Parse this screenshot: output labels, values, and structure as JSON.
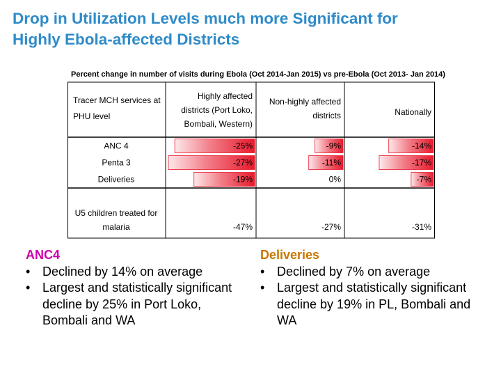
{
  "slide": {
    "title_line1": "Drop in Utilization Levels much more Significant for",
    "title_line2": "Highly Ebola-affected Districts"
  },
  "chart_data": {
    "type": "table",
    "title": "Percent change in number of visits during Ebola (Oct 2014-Jan 2015) vs pre-Ebola (Oct 2013- Jan 2014)",
    "row_header": [
      "Tracer MCH services at",
      "PHU level"
    ],
    "columns": [
      {
        "name": "highly",
        "label_lines": [
          "Highly affected",
          "districts (Port Loko,",
          "Bombali, Western)"
        ]
      },
      {
        "name": "non-highly",
        "label_lines": [
          "Non-highly affected",
          "districts"
        ]
      },
      {
        "name": "national",
        "label_lines": [
          "Nationally"
        ]
      }
    ],
    "rows": [
      {
        "label": [
          "ANC 4"
        ],
        "values": [
          -25,
          -9,
          -14
        ],
        "labels": [
          "-25%",
          "-9%",
          "-14%"
        ],
        "bars": true
      },
      {
        "label": [
          "Penta 3"
        ],
        "values": [
          -27,
          -11,
          -17
        ],
        "labels": [
          "-27%",
          "-11%",
          "-17%"
        ],
        "bars": true
      },
      {
        "label": [
          "Deliveries"
        ],
        "values": [
          -19,
          0,
          -7
        ],
        "labels": [
          "-19%",
          "0%",
          "-7%"
        ],
        "bars": true
      },
      {
        "label": [
          "U5 children treated for",
          "malaria"
        ],
        "values": [
          -47,
          -27,
          -31
        ],
        "labels": [
          "-47%",
          "-27%",
          "-31%"
        ],
        "bars": false
      }
    ],
    "bar_scale_max": 27,
    "colors": {
      "bar": "#e8192c",
      "grid": "#000000"
    }
  },
  "notes": {
    "left": {
      "heading": "ANC4",
      "bullets": [
        "Declined by 14% on average",
        "Largest and statistically significant decline by 25% in Port Loko, Bombali and WA"
      ]
    },
    "right": {
      "heading": "Deliveries",
      "bullets": [
        "Declined by 7% on average",
        "Largest and statistically significant decline by 19% in PL, Bombali and WA"
      ]
    }
  }
}
